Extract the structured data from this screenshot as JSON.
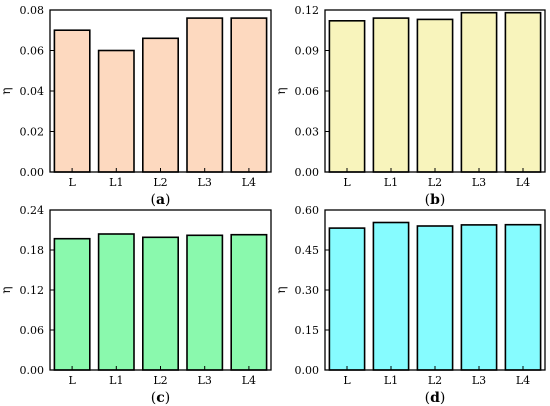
{
  "chart_data": [
    {
      "type": "bar",
      "panel_label": "(a)",
      "ylabel": "η",
      "categories": [
        "L",
        "L1",
        "L2",
        "L3",
        "L4"
      ],
      "values": [
        0.07,
        0.06,
        0.066,
        0.076,
        0.076
      ],
      "ylim": [
        0,
        0.08
      ],
      "yticks": [
        "0.00",
        "0.02",
        "0.04",
        "0.06",
        "0.08"
      ],
      "bar_color": "#FDD9BF",
      "grid": false
    },
    {
      "type": "bar",
      "panel_label": "(b)",
      "ylabel": "η",
      "categories": [
        "L",
        "L1",
        "L2",
        "L3",
        "L4"
      ],
      "values": [
        0.112,
        0.114,
        0.113,
        0.118,
        0.118
      ],
      "ylim": [
        0,
        0.12
      ],
      "yticks": [
        "0.00",
        "0.03",
        "0.06",
        "0.09",
        "0.12"
      ],
      "bar_color": "#F8F4BC",
      "grid": false
    },
    {
      "type": "bar",
      "panel_label": "(c)",
      "ylabel": "η",
      "categories": [
        "L",
        "L1",
        "L2",
        "L3",
        "L4"
      ],
      "values": [
        0.197,
        0.204,
        0.199,
        0.202,
        0.203
      ],
      "ylim": [
        0,
        0.24
      ],
      "yticks": [
        "0.00",
        "0.06",
        "0.12",
        "0.18",
        "0.24"
      ],
      "bar_color": "#8AF9AD",
      "grid": false
    },
    {
      "type": "bar",
      "panel_label": "(d)",
      "ylabel": "η",
      "categories": [
        "L",
        "L1",
        "L2",
        "L3",
        "L4"
      ],
      "values": [
        0.532,
        0.553,
        0.54,
        0.544,
        0.545
      ],
      "ylim": [
        0,
        0.6
      ],
      "yticks": [
        "0.00",
        "0.15",
        "0.30",
        "0.45",
        "0.60"
      ],
      "bar_color": "#86FCFF",
      "grid": false
    }
  ]
}
